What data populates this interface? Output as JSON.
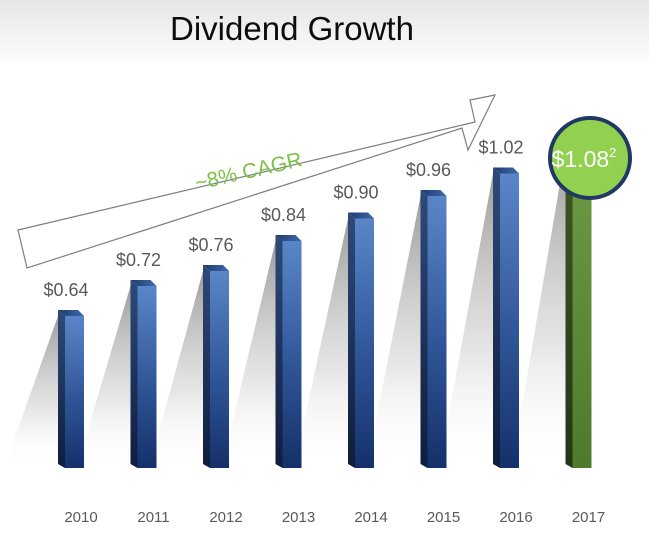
{
  "title": "Dividend Growth",
  "chart_data": {
    "type": "bar",
    "title": "Dividend Growth",
    "categories": [
      "2010",
      "2011",
      "2012",
      "2013",
      "2014",
      "2015",
      "2016",
      "2017"
    ],
    "values": [
      0.64,
      0.72,
      0.76,
      0.84,
      0.9,
      0.96,
      1.02,
      1.08
    ],
    "data_labels": [
      "$0.64",
      "$0.72",
      "$0.76",
      "$0.84",
      "$0.90",
      "$0.96",
      "$1.02",
      "$1.08"
    ],
    "highlight": {
      "category": "2017",
      "label": "$1.08",
      "superscript": "2"
    },
    "annotation": "~8% CAGR",
    "grid": false,
    "colors": {
      "bar_front": "#2f5597",
      "bar_side": "#1a2b4d",
      "highlight_front": "#5e8a3a",
      "highlight_side": "#2f4a1d",
      "callout_fill": "#92d050",
      "callout_border": "#1f3864",
      "cagr_text": "#7ac143",
      "label_text": "#595959"
    }
  }
}
